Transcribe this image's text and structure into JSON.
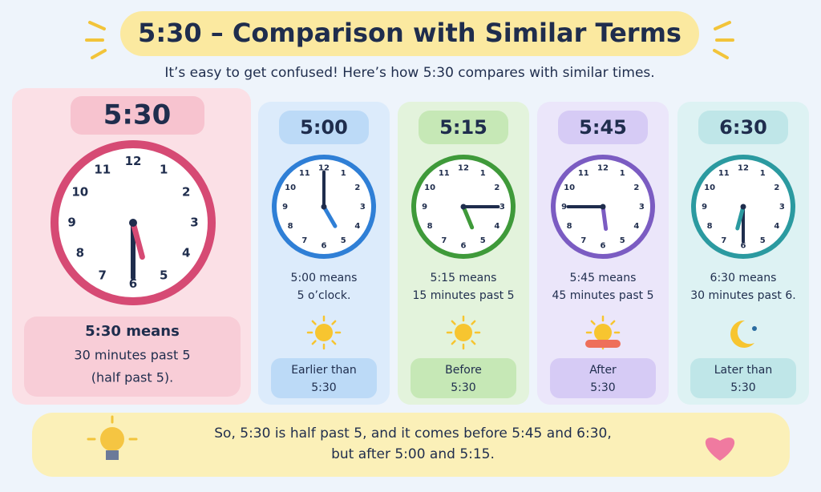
{
  "title": "5:30 – Comparison with Similar Terms",
  "subtitle": "It’s easy to get confused! Here’s how 5:30 compares with similar times.",
  "clock_numbers": [
    "12",
    "1",
    "2",
    "3",
    "4",
    "5",
    "6",
    "7",
    "8",
    "9",
    "10",
    "11"
  ],
  "main_card": {
    "time": "5:30",
    "heading": "5:30 means",
    "lines": [
      "30 minutes past 5",
      "(half past 5)."
    ]
  },
  "cards": [
    {
      "time": "5:00",
      "lines": [
        "5:00 means",
        "5 o’clock."
      ],
      "comparison": [
        "Earlier than",
        "5:30"
      ]
    },
    {
      "time": "5:15",
      "lines": [
        "5:15 means",
        "15 minutes past 5"
      ],
      "comparison": [
        "Before",
        "5:30"
      ]
    },
    {
      "time": "5:45",
      "lines": [
        "5:45 means",
        "45 minutes past 5"
      ],
      "comparison": [
        "After",
        "5:30"
      ]
    },
    {
      "time": "6:30",
      "lines": [
        "6:30 means",
        "30 minutes past 6."
      ],
      "comparison": [
        "Later than",
        "5:30"
      ]
    }
  ],
  "summary": [
    "So, 5:30 is half past 5, and it comes before 5:45 and 6:30,",
    "but after 5:00 and 5:15."
  ]
}
